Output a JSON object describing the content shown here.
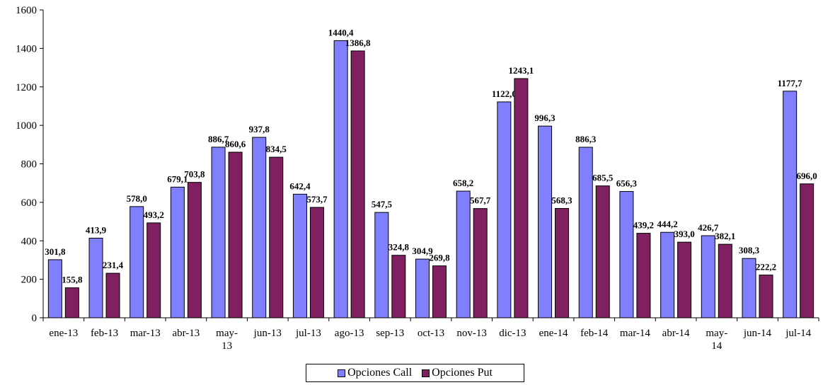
{
  "chart_data": {
    "type": "bar",
    "categories": [
      "ene-13",
      "feb-13",
      "mar-13",
      "abr-13",
      "may-13",
      "jun-13",
      "jul-13",
      "ago-13",
      "sep-13",
      "oct-13",
      "nov-13",
      "dic-13",
      "ene-14",
      "feb-14",
      "mar-14",
      "abr-14",
      "may-14",
      "jun-14",
      "jul-14"
    ],
    "category_labels": [
      [
        "ene-13"
      ],
      [
        "feb-13"
      ],
      [
        "mar-13"
      ],
      [
        "abr-13"
      ],
      [
        "may-",
        "13"
      ],
      [
        "jun-13"
      ],
      [
        "jul-13"
      ],
      [
        "ago-13"
      ],
      [
        "sep-13"
      ],
      [
        "oct-13"
      ],
      [
        "nov-13"
      ],
      [
        "dic-13"
      ],
      [
        "ene-14"
      ],
      [
        "feb-14"
      ],
      [
        "mar-14"
      ],
      [
        "abr-14"
      ],
      [
        "may-",
        "14"
      ],
      [
        "jun-14"
      ],
      [
        "jul-14"
      ]
    ],
    "series": [
      {
        "name": "Opciones Call",
        "color": "#8080ff",
        "values": [
          301.8,
          413.9,
          578.0,
          679.1,
          886.7,
          937.8,
          642.4,
          1440.4,
          547.5,
          304.9,
          658.2,
          1122.0,
          996.3,
          886.3,
          656.3,
          444.2,
          426.7,
          308.3,
          1177.7
        ],
        "labels": [
          "301,8",
          "413,9",
          "578,0",
          "679,1",
          "886,7",
          "937,8",
          "642,4",
          "1440,4",
          "547,5",
          "304,9",
          "658,2",
          "1122,0",
          "996,3",
          "886,3",
          "656,3",
          "444,2",
          "426,7",
          "308,3",
          "1177,7"
        ]
      },
      {
        "name": "Opciones Put",
        "color": "#802060",
        "values": [
          155.8,
          231.4,
          493.2,
          703.8,
          860.6,
          834.5,
          573.7,
          1386.8,
          324.8,
          269.8,
          567.7,
          1243.1,
          568.3,
          685.5,
          439.2,
          393.0,
          382.1,
          222.2,
          696.0
        ],
        "labels": [
          "155,8",
          "231,4",
          "493,2",
          "703,8",
          "860,6",
          "834,5",
          "573,7",
          "1386,8",
          "324,8",
          "269,8",
          "567,7",
          "1243,1",
          "568,3",
          "685,5",
          "439,2",
          "393,0",
          "382,1",
          "222,2",
          "696,0"
        ]
      }
    ],
    "y_ticks": [
      0,
      200,
      400,
      600,
      800,
      1000,
      1200,
      1400,
      1600
    ],
    "ylim": [
      0,
      1600
    ],
    "title": "",
    "xlabel": "",
    "ylabel": "",
    "grid": false,
    "legend_position": "bottom-center"
  },
  "legend": {
    "call_label": "Opciones Call",
    "put_label": "Opciones Put"
  }
}
